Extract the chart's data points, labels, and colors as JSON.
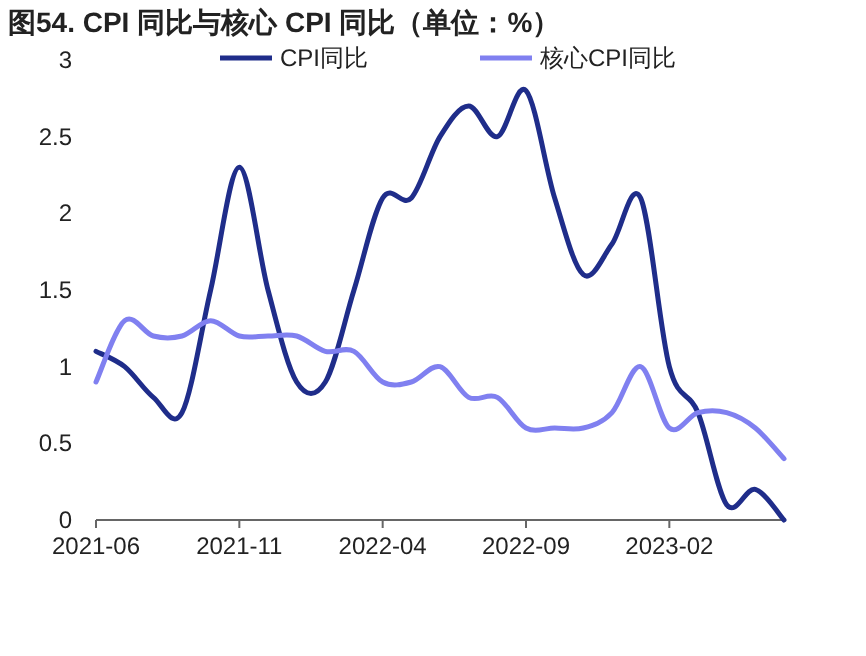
{
  "chart_data": {
    "type": "line",
    "title": "图54. CPI 同比与核心 CPI 同比（单位：%）",
    "categories": [
      "2021-06",
      null,
      null,
      null,
      null,
      "2021-11",
      null,
      null,
      null,
      null,
      "2022-04",
      null,
      null,
      null,
      null,
      "2022-09",
      null,
      null,
      null,
      null,
      "2023-02",
      null,
      null,
      null,
      null
    ],
    "series": [
      {
        "name": "CPI同比",
        "color": "#1f2d8a",
        "values": [
          1.1,
          1.0,
          0.8,
          0.7,
          1.5,
          2.3,
          1.5,
          0.9,
          0.9,
          1.5,
          2.1,
          2.1,
          2.5,
          2.7,
          2.5,
          2.8,
          2.1,
          1.6,
          1.8,
          2.1,
          1.0,
          0.7,
          0.1,
          0.2,
          0.0
        ]
      },
      {
        "name": "核心CPI同比",
        "color": "#8080f0",
        "values": [
          0.9,
          1.3,
          1.2,
          1.2,
          1.3,
          1.2,
          1.2,
          1.2,
          1.1,
          1.1,
          0.9,
          0.9,
          1.0,
          0.8,
          0.8,
          0.6,
          0.6,
          0.6,
          0.7,
          1.0,
          0.6,
          0.7,
          0.7,
          0.6,
          0.4
        ]
      }
    ],
    "ylim": [
      0,
      3
    ],
    "yticks": [
      0,
      0.5,
      1,
      1.5,
      2,
      2.5,
      3
    ],
    "grid": false,
    "legend": "top",
    "marker": "none",
    "line_style": "solid"
  }
}
